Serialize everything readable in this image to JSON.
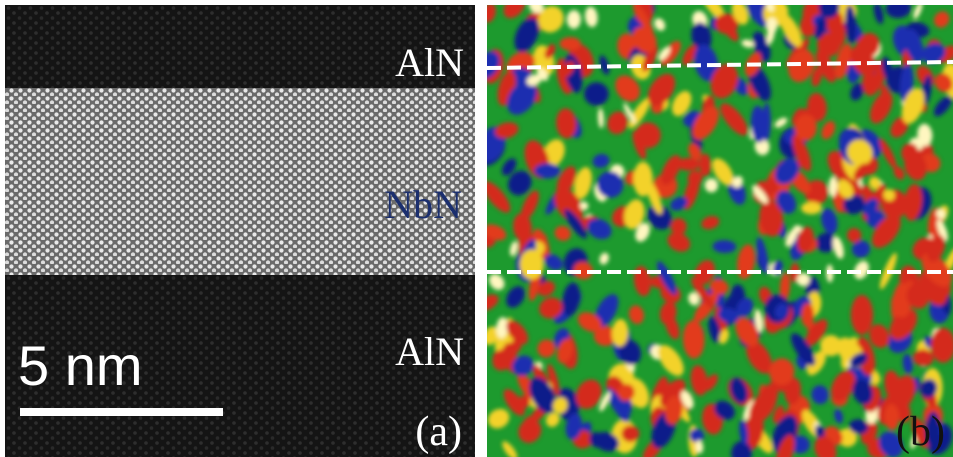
{
  "panels": [
    {
      "labels": [
        "AlN",
        "NbN",
        "AlN"
      ],
      "scale_bar": "5 nm",
      "panel_label": "(a)"
    },
    {
      "panel_label": "(b)"
    }
  ]
}
